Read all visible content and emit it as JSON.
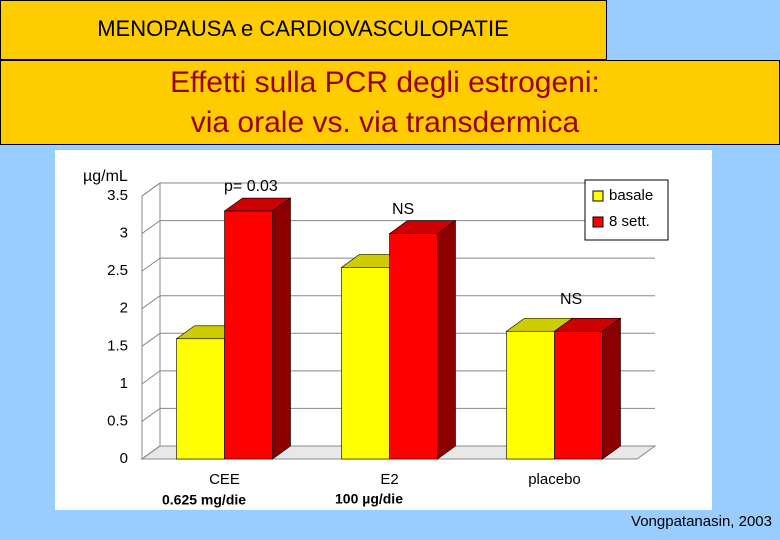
{
  "header": {
    "tag": "MENOPAUSA e CARDIOVASCULOPATIE",
    "title_lines": [
      "Effetti sulla PCR degli estrogeni:",
      "via orale vs. via transdermica"
    ]
  },
  "chart_data": {
    "type": "bar3d",
    "y_label": "µg/mL",
    "categories": [
      "CEE",
      "E2",
      "placebo"
    ],
    "series": [
      {
        "name": "basale",
        "color": "#ffff00",
        "values": [
          1.6,
          2.55,
          1.7
        ]
      },
      {
        "name": "8 sett.",
        "color": "#ff0000",
        "values": [
          3.3,
          3.0,
          1.7
        ]
      }
    ],
    "ylim": [
      0,
      3.5
    ],
    "yticks": [
      0,
      0.5,
      1,
      1.5,
      2,
      2.5,
      3,
      3.5
    ],
    "grid": true,
    "legend": "top-right",
    "annotations": [
      "p= 0.03",
      "NS",
      "NS",
      "0.625 mg/die",
      "100 µg/die"
    ]
  },
  "footer": {
    "citation": "Vongpatanasin, 2003"
  }
}
